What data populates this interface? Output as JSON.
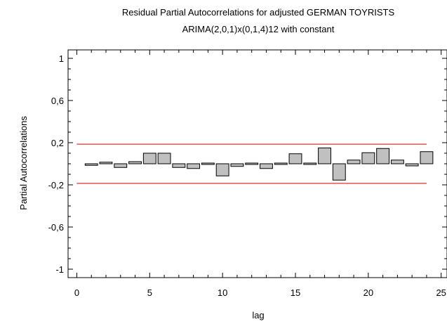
{
  "chart_data": {
    "type": "bar",
    "title": "Residual Partial Autocorrelations for adjusted GERMAN TOYRISTS",
    "subtitle": "ARIMA(2,0,1)x(0,1,4)12 with constant",
    "xlabel": "lag",
    "ylabel": "Partial Autocorrelations",
    "xlim": [
      0,
      25
    ],
    "ylim": [
      -1,
      1
    ],
    "xticks": [
      "0",
      "5",
      "10",
      "15",
      "20",
      "25"
    ],
    "xtick_values": [
      0,
      5,
      10,
      15,
      20,
      25
    ],
    "yticks": [
      "1",
      "0,6",
      "0,2",
      "-0,2",
      "-0,6",
      "-1"
    ],
    "ytick_values": [
      1,
      0.6,
      0.2,
      -0.2,
      -0.6,
      -1
    ],
    "grid": false,
    "bar_color": "#c0c0c0",
    "limit_color": "#e03030",
    "limits": [
      0.186,
      -0.186
    ],
    "x": [
      1,
      2,
      3,
      4,
      5,
      6,
      7,
      8,
      9,
      10,
      11,
      12,
      13,
      14,
      15,
      16,
      17,
      18,
      19,
      20,
      21,
      22,
      23,
      24
    ],
    "values": [
      -0.015,
      0.015,
      -0.035,
      0.02,
      0.1,
      0.1,
      -0.035,
      -0.045,
      0.005,
      -0.115,
      -0.025,
      -0.005,
      -0.045,
      0.005,
      0.095,
      0.005,
      0.15,
      -0.155,
      0.035,
      0.105,
      0.145,
      0.035,
      -0.02,
      0.115
    ]
  }
}
